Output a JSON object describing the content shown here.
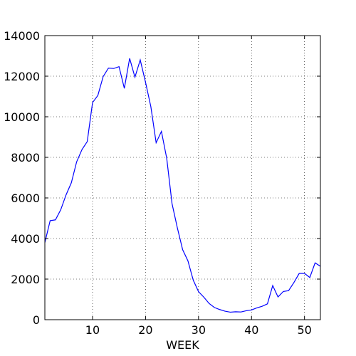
{
  "chart_data": {
    "type": "line",
    "title": "",
    "xlabel": "WEEK",
    "ylabel": "",
    "xlim": [
      1,
      53
    ],
    "ylim": [
      0,
      14000
    ],
    "x_ticks": [
      10,
      20,
      30,
      40,
      50
    ],
    "y_ticks": [
      0,
      2000,
      4000,
      6000,
      8000,
      10000,
      12000,
      14000
    ],
    "grid": true,
    "legend": "none",
    "series": [
      {
        "color": "#0000ff",
        "x": [
          1,
          2,
          3,
          4,
          5,
          6,
          7,
          8,
          9,
          10,
          11,
          12,
          13,
          14,
          15,
          16,
          17,
          18,
          19,
          20,
          21,
          22,
          23,
          24,
          25,
          26,
          27,
          28,
          29,
          30,
          31,
          32,
          33,
          34,
          35,
          36,
          37,
          38,
          39,
          40,
          41,
          42,
          43,
          44,
          45,
          46,
          47,
          48,
          49,
          50,
          51,
          52,
          53
        ],
        "values": [
          3800,
          4880,
          4920,
          5420,
          6150,
          6750,
          7780,
          8380,
          8780,
          10700,
          11050,
          11980,
          12400,
          12380,
          12470,
          11400,
          12880,
          11950,
          12800,
          11700,
          10500,
          8720,
          9280,
          7950,
          5720,
          4530,
          3450,
          2900,
          1950,
          1380,
          1110,
          800,
          600,
          500,
          420,
          370,
          390,
          380,
          440,
          480,
          580,
          660,
          780,
          1680,
          1120,
          1390,
          1430,
          1830,
          2280,
          2280,
          2080,
          2800,
          2630
        ]
      }
    ]
  }
}
